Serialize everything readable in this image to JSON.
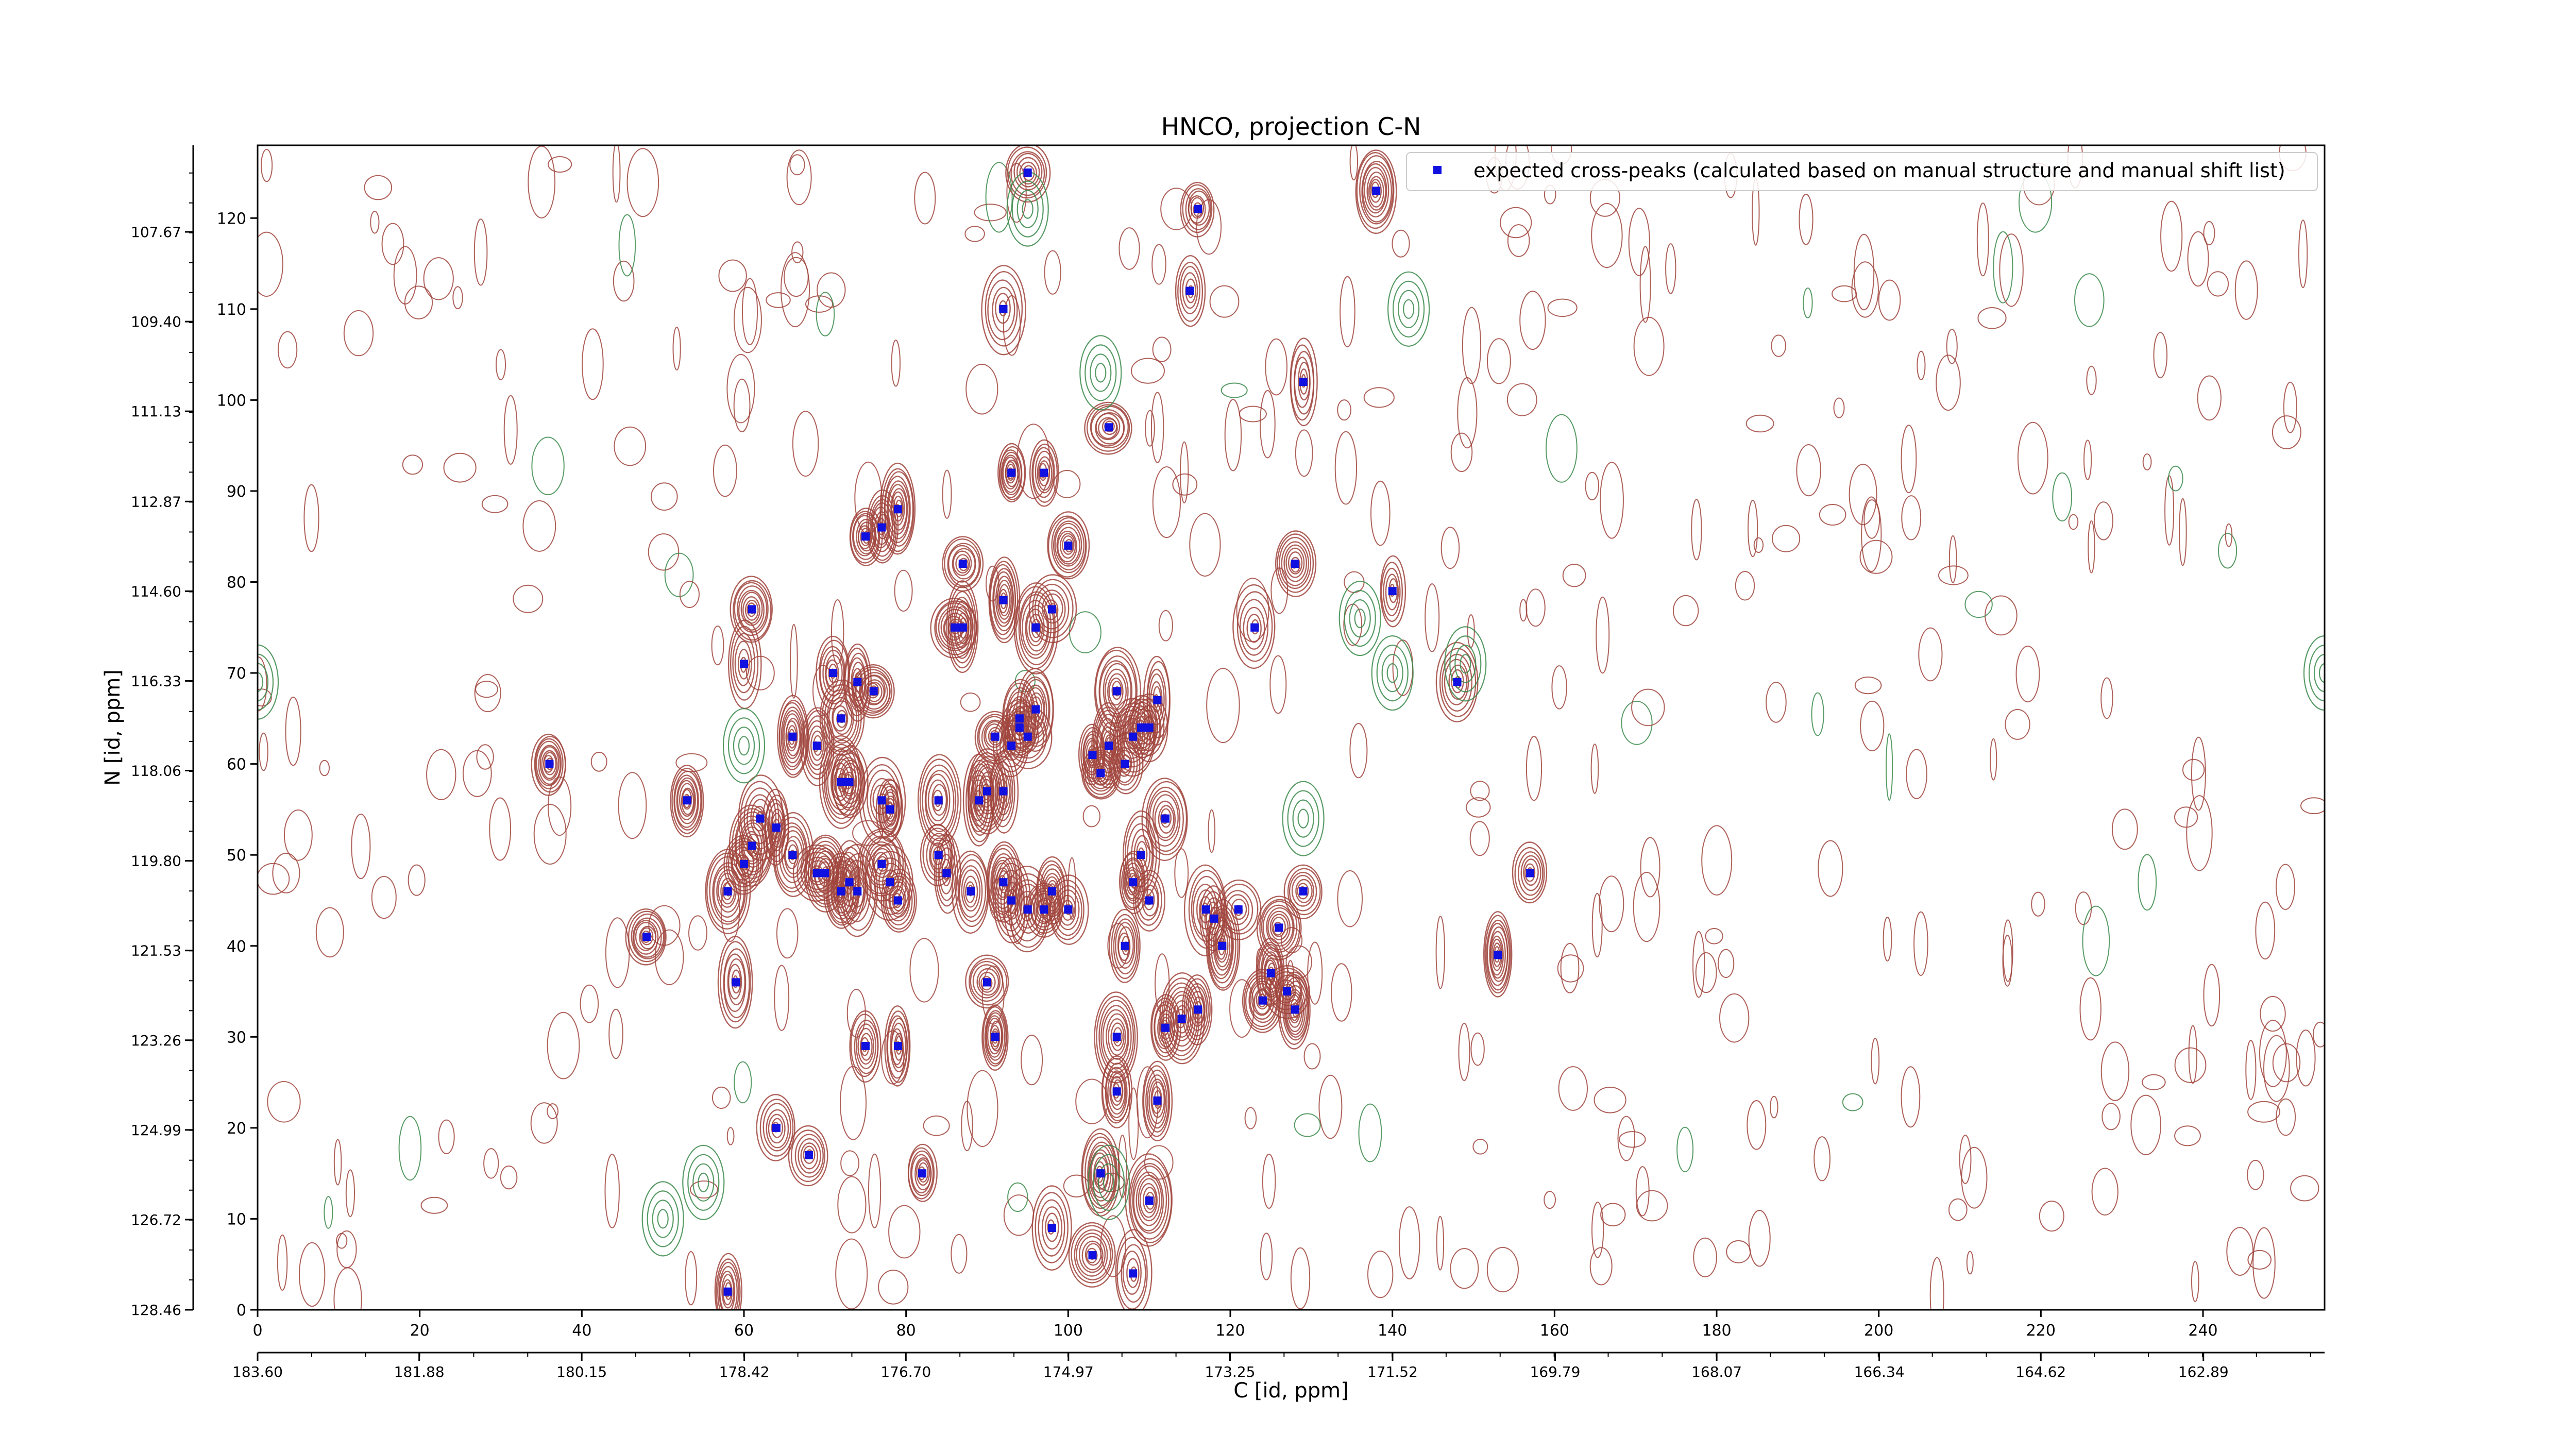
{
  "chart_data": {
    "type": "scatter",
    "title": "HNCO, projection C-N",
    "xlabel": "C [id, ppm]",
    "ylabel": "N [id, ppm]",
    "x_index_range": [
      0,
      255
    ],
    "y_index_range": [
      0,
      128
    ],
    "x_index_ticks": [
      "0",
      "20",
      "40",
      "60",
      "80",
      "100",
      "120",
      "140",
      "160",
      "180",
      "200",
      "220",
      "240"
    ],
    "y_index_ticks": [
      "0",
      "10",
      "20",
      "30",
      "40",
      "50",
      "60",
      "70",
      "80",
      "90",
      "100",
      "110",
      "120"
    ],
    "x_ppm_range": [
      183.6,
      161.6
    ],
    "y_ppm_range": [
      128.46,
      106.0
    ],
    "x_ppm_ticks": [
      "183.60",
      "181.88",
      "180.15",
      "178.42",
      "176.70",
      "174.97",
      "173.25",
      "171.52",
      "169.79",
      "168.07",
      "166.34",
      "164.62",
      "162.89"
    ],
    "y_ppm_ticks": [
      "128.46",
      "126.72",
      "124.99",
      "123.26",
      "121.53",
      "119.80",
      "118.06",
      "116.33",
      "114.60",
      "112.87",
      "111.13",
      "109.40",
      "107.67"
    ],
    "legend": {
      "placement": "top-right",
      "entries": [
        "expected cross-peaks (calculated based on manual structure and manual shift list)"
      ]
    },
    "colors": {
      "positive_contours": "#a0443c",
      "negative_contours": "#3a8a4a",
      "markers": "#1010e0"
    },
    "series": [
      {
        "name": "expected cross-peaks (calculated based on manual structure and manual shift list)",
        "x": [
          95,
          138,
          116,
          92,
          115,
          129,
          79,
          77,
          93,
          97,
          100,
          105,
          75,
          61,
          87,
          92,
          96,
          98,
          87,
          86,
          71,
          74,
          76,
          66,
          69,
          72,
          72,
          73,
          77,
          78,
          84,
          89,
          90,
          92,
          91,
          93,
          94,
          95,
          94,
          96,
          103,
          104,
          105,
          106,
          109,
          110,
          111,
          107,
          108,
          112,
          109,
          108,
          110,
          53,
          58,
          60,
          61,
          64,
          66,
          70,
          69,
          72,
          73,
          74,
          77,
          78,
          79,
          84,
          85,
          88,
          92,
          93,
          95,
          97,
          98,
          100,
          107,
          117,
          118,
          119,
          121,
          129,
          126,
          148,
          157,
          153,
          125,
          124,
          128,
          127,
          116,
          114,
          112,
          106,
          59,
          75,
          79,
          90,
          91,
          106,
          111,
          64,
          68,
          82,
          104,
          110,
          98,
          103,
          108,
          58,
          140,
          123,
          128,
          36,
          48,
          60,
          62
        ],
        "y": [
          125,
          123,
          121,
          110,
          112,
          102,
          88,
          86,
          92,
          92,
          84,
          97,
          85,
          77,
          82,
          78,
          75,
          77,
          75,
          75,
          70,
          69,
          68,
          63,
          62,
          65,
          58,
          58,
          56,
          55,
          56,
          56,
          57,
          57,
          63,
          62,
          64,
          63,
          65,
          66,
          61,
          59,
          62,
          68,
          64,
          64,
          67,
          60,
          63,
          54,
          50,
          47,
          45,
          56,
          46,
          49,
          51,
          53,
          50,
          48,
          48,
          46,
          47,
          46,
          49,
          47,
          45,
          50,
          48,
          46,
          47,
          45,
          44,
          44,
          46,
          44,
          40,
          44,
          43,
          40,
          44,
          46,
          42,
          69,
          48,
          39,
          37,
          34,
          33,
          35,
          33,
          32,
          31,
          30,
          36,
          29,
          29,
          36,
          30,
          24,
          23,
          20,
          17,
          15,
          15,
          12,
          9,
          6,
          4,
          2,
          79,
          75,
          82,
          60,
          41,
          71,
          54
        ]
      }
    ]
  }
}
